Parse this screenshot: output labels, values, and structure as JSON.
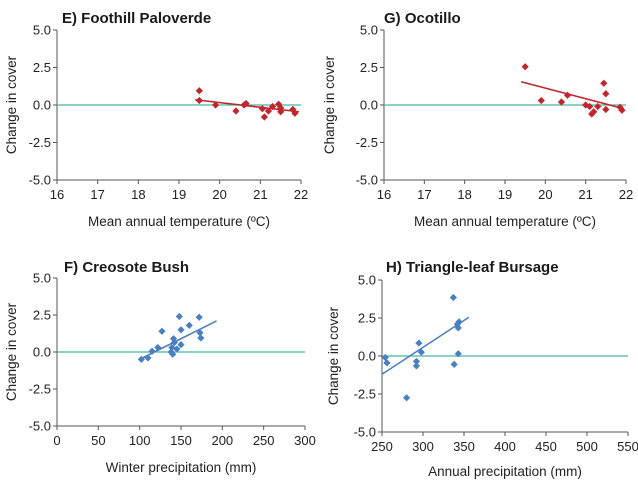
{
  "colors": {
    "red": "#c0272d",
    "blue": "#4a7fc1",
    "zero_line": "#48b8a0"
  },
  "chart_data": [
    {
      "id": "E",
      "type": "scatter",
      "title": "E) Foothill Paloverde",
      "xlabel": "Mean annual temperature (ºC)",
      "ylabel": "Change in cover",
      "xlim": [
        16,
        22
      ],
      "ylim": [
        -5,
        5
      ],
      "xticks": [
        "16",
        "17",
        "18",
        "19",
        "20",
        "21",
        "22"
      ],
      "yticks": [
        "5.0",
        "2.5",
        "0.0",
        "-2.5",
        "-5.0"
      ],
      "color": "#c0272d",
      "points": [
        [
          19.5,
          0.95
        ],
        [
          19.5,
          0.3
        ],
        [
          19.9,
          0.0
        ],
        [
          20.4,
          -0.4
        ],
        [
          20.6,
          0.0
        ],
        [
          20.65,
          0.1
        ],
        [
          21.05,
          -0.25
        ],
        [
          21.1,
          -0.8
        ],
        [
          21.2,
          -0.4
        ],
        [
          21.3,
          -0.1
        ],
        [
          21.45,
          0.05
        ],
        [
          21.5,
          -0.2
        ],
        [
          21.5,
          -0.45
        ],
        [
          21.8,
          -0.3
        ],
        [
          21.85,
          -0.55
        ]
      ],
      "trend": [
        [
          19.4,
          0.35
        ],
        [
          21.95,
          -0.45
        ]
      ]
    },
    {
      "id": "G",
      "type": "scatter",
      "title": "G) Ocotillo",
      "xlabel": "Mean annual temperature (ºC)",
      "ylabel": "Change in cover",
      "xlim": [
        16,
        22
      ],
      "ylim": [
        -5,
        5
      ],
      "xticks": [
        "16",
        "17",
        "18",
        "19",
        "20",
        "21",
        "22"
      ],
      "yticks": [
        "5.0",
        "2.5",
        "0.0",
        "-2.5",
        "-5.0"
      ],
      "color": "#c0272d",
      "points": [
        [
          19.5,
          2.55
        ],
        [
          19.9,
          0.3
        ],
        [
          20.4,
          0.2
        ],
        [
          20.55,
          0.65
        ],
        [
          21.0,
          0.0
        ],
        [
          21.1,
          -0.1
        ],
        [
          21.15,
          -0.6
        ],
        [
          21.2,
          -0.45
        ],
        [
          21.3,
          -0.1
        ],
        [
          21.45,
          1.45
        ],
        [
          21.5,
          0.75
        ],
        [
          21.5,
          -0.3
        ],
        [
          21.85,
          -0.15
        ],
        [
          21.9,
          -0.35
        ]
      ],
      "trend": [
        [
          19.4,
          1.55
        ],
        [
          21.95,
          -0.25
        ]
      ]
    },
    {
      "id": "F",
      "type": "scatter",
      "title": "F) Creosote Bush",
      "xlabel": "Winter precipitation (mm)",
      "ylabel": "Change in cover",
      "xlim": [
        0,
        300
      ],
      "ylim": [
        -5,
        5
      ],
      "xticks": [
        "0",
        "50",
        "100",
        "150",
        "200",
        "250",
        "300"
      ],
      "yticks": [
        "5.0",
        "2.5",
        "0.0",
        "-2.5",
        "-5.0"
      ],
      "color": "#4a7fc1",
      "points": [
        [
          102,
          -0.5
        ],
        [
          110,
          -0.4
        ],
        [
          115,
          0.05
        ],
        [
          122,
          0.3
        ],
        [
          127,
          1.4
        ],
        [
          138,
          0.0
        ],
        [
          139,
          0.3
        ],
        [
          140,
          -0.15
        ],
        [
          141,
          0.9
        ],
        [
          142,
          0.65
        ],
        [
          145,
          0.2
        ],
        [
          148,
          2.4
        ],
        [
          150,
          1.5
        ],
        [
          150,
          0.5
        ],
        [
          160,
          1.8
        ],
        [
          172,
          2.35
        ],
        [
          173,
          1.3
        ],
        [
          174,
          0.95
        ]
      ],
      "trend": [
        [
          100,
          -0.5
        ],
        [
          193,
          2.1
        ]
      ]
    },
    {
      "id": "H",
      "type": "scatter",
      "title": "H) Triangle-leaf Bursage",
      "xlabel": "Annual precipitation (mm)",
      "ylabel": "Change in cover",
      "xlim": [
        250,
        550
      ],
      "ylim": [
        -5,
        5
      ],
      "xticks": [
        "250",
        "300",
        "350",
        "400",
        "450",
        "500",
        "550"
      ],
      "yticks": [
        "5.0",
        "2.5",
        "0.0",
        "-2.5",
        "-5.0"
      ],
      "color": "#4a7fc1",
      "points": [
        [
          254,
          -0.1
        ],
        [
          256,
          -0.45
        ],
        [
          280,
          -2.75
        ],
        [
          292,
          -0.35
        ],
        [
          292,
          -0.65
        ],
        [
          295,
          0.85
        ],
        [
          298,
          0.25
        ],
        [
          337,
          3.85
        ],
        [
          338,
          -0.55
        ],
        [
          342,
          2.1
        ],
        [
          343,
          1.85
        ],
        [
          343,
          0.15
        ],
        [
          344,
          2.25
        ]
      ],
      "trend": [
        [
          250,
          -1.2
        ],
        [
          356,
          2.55
        ]
      ]
    }
  ]
}
